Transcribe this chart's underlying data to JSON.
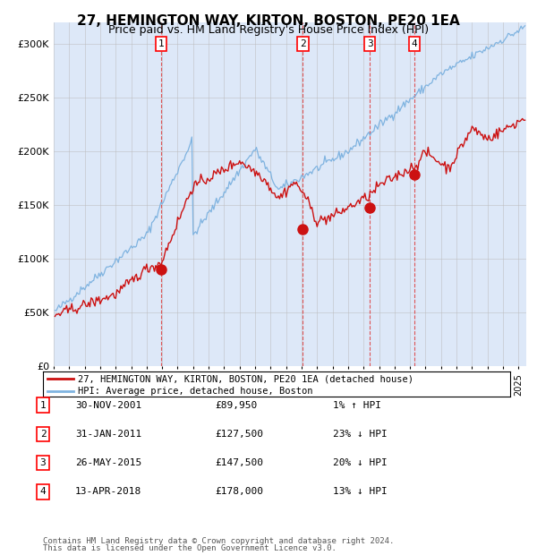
{
  "title": "27, HEMINGTON WAY, KIRTON, BOSTON, PE20 1EA",
  "subtitle": "Price paid vs. HM Land Registry's House Price Index (HPI)",
  "legend_line1": "27, HEMINGTON WAY, KIRTON, BOSTON, PE20 1EA (detached house)",
  "legend_line2": "HPI: Average price, detached house, Boston",
  "footer1": "Contains HM Land Registry data © Crown copyright and database right 2024.",
  "footer2": "This data is licensed under the Open Government Licence v3.0.",
  "transactions": [
    {
      "num": 1,
      "date": "30-NOV-2001",
      "price": 89950,
      "pct": "1%",
      "dir": "↑"
    },
    {
      "num": 2,
      "date": "31-JAN-2011",
      "price": 127500,
      "pct": "23%",
      "dir": "↓"
    },
    {
      "num": 3,
      "date": "26-MAY-2015",
      "price": 147500,
      "pct": "20%",
      "dir": "↓"
    },
    {
      "num": 4,
      "date": "13-APR-2018",
      "price": 178000,
      "pct": "13%",
      "dir": "↓"
    }
  ],
  "transaction_dates_decimal": [
    2001.92,
    2011.08,
    2015.4,
    2018.28
  ],
  "transaction_prices": [
    89950,
    127500,
    147500,
    178000
  ],
  "ylim": [
    0,
    320000
  ],
  "xlim_start": 1995.0,
  "xlim_end": 2025.5,
  "background_color": "#dde8f8",
  "plot_bg": "#dde8f8",
  "hpi_color": "#7fb3e0",
  "price_color": "#cc1111",
  "grid_color": "#bbbbbb",
  "vline_color": "#dd4444",
  "marker_color": "#cc1111"
}
